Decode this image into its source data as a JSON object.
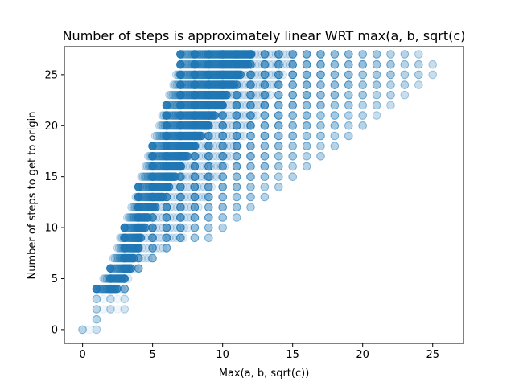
{
  "chart_data": {
    "type": "scatter",
    "title": "Number of steps is approximately linear WRT max(a, b, sqrt(c)",
    "xlabel": "Max(a, b, sqrt(c))",
    "ylabel": "Number of steps to get to origin",
    "xlim": [
      -1.3,
      27.2
    ],
    "ylim": [
      -1.35,
      27.75
    ],
    "xticks": [
      0,
      5,
      10,
      15,
      20,
      25
    ],
    "yticks": [
      0,
      5,
      10,
      15,
      20,
      25
    ],
    "grid": false,
    "marker_color": "#1f77b4",
    "marker_alpha": 0.05,
    "marker_shape": "circle",
    "points_description_range": {
      "x_integers": "0 to 25 (with dense fractional sqrt(c) values between roughly 2 and 11)",
      "y_integers": "0 to 27"
    },
    "series": [
      {
        "envelope": [
          {
            "y": 0,
            "x_min": 0,
            "x_max": 1
          },
          {
            "y": 1,
            "x_min": 1,
            "x_max": 1
          },
          {
            "y": 2,
            "x_min": 1,
            "x_max": 3
          },
          {
            "y": 3,
            "x_min": 1,
            "x_max": 3
          },
          {
            "y": 4,
            "x_min": 1,
            "x_max": 3
          },
          {
            "y": 5,
            "x_min": 1.5,
            "x_max": 3.4
          },
          {
            "y": 6,
            "x_min": 2,
            "x_max": 4
          },
          {
            "y": 7,
            "x_min": 2.2,
            "x_max": 5
          },
          {
            "y": 8,
            "x_min": 2.5,
            "x_max": 6
          },
          {
            "y": 9,
            "x_min": 2.7,
            "x_max": 9
          },
          {
            "y": 10,
            "x_min": 3,
            "x_max": 10
          },
          {
            "y": 11,
            "x_min": 3.2,
            "x_max": 11
          },
          {
            "y": 12,
            "x_min": 3.5,
            "x_max": 12
          },
          {
            "y": 13,
            "x_min": 3.8,
            "x_max": 13
          },
          {
            "y": 14,
            "x_min": 4,
            "x_max": 14
          },
          {
            "y": 15,
            "x_min": 4.2,
            "x_max": 15
          },
          {
            "y": 16,
            "x_min": 4.5,
            "x_max": 16
          },
          {
            "y": 17,
            "x_min": 4.7,
            "x_max": 17
          },
          {
            "y": 18,
            "x_min": 5,
            "x_max": 18
          },
          {
            "y": 19,
            "x_min": 5.2,
            "x_max": 19
          },
          {
            "y": 20,
            "x_min": 5.5,
            "x_max": 20
          },
          {
            "y": 21,
            "x_min": 5.7,
            "x_max": 21
          },
          {
            "y": 22,
            "x_min": 6,
            "x_max": 22
          },
          {
            "y": 23,
            "x_min": 6.2,
            "x_max": 23
          },
          {
            "y": 24,
            "x_min": 6.5,
            "x_max": 24
          },
          {
            "y": 25,
            "x_min": 6.7,
            "x_max": 25
          },
          {
            "y": 26,
            "x_min": 7,
            "x_max": 25
          },
          {
            "y": 27,
            "x_min": 7,
            "x_max": 24
          }
        ]
      }
    ]
  }
}
